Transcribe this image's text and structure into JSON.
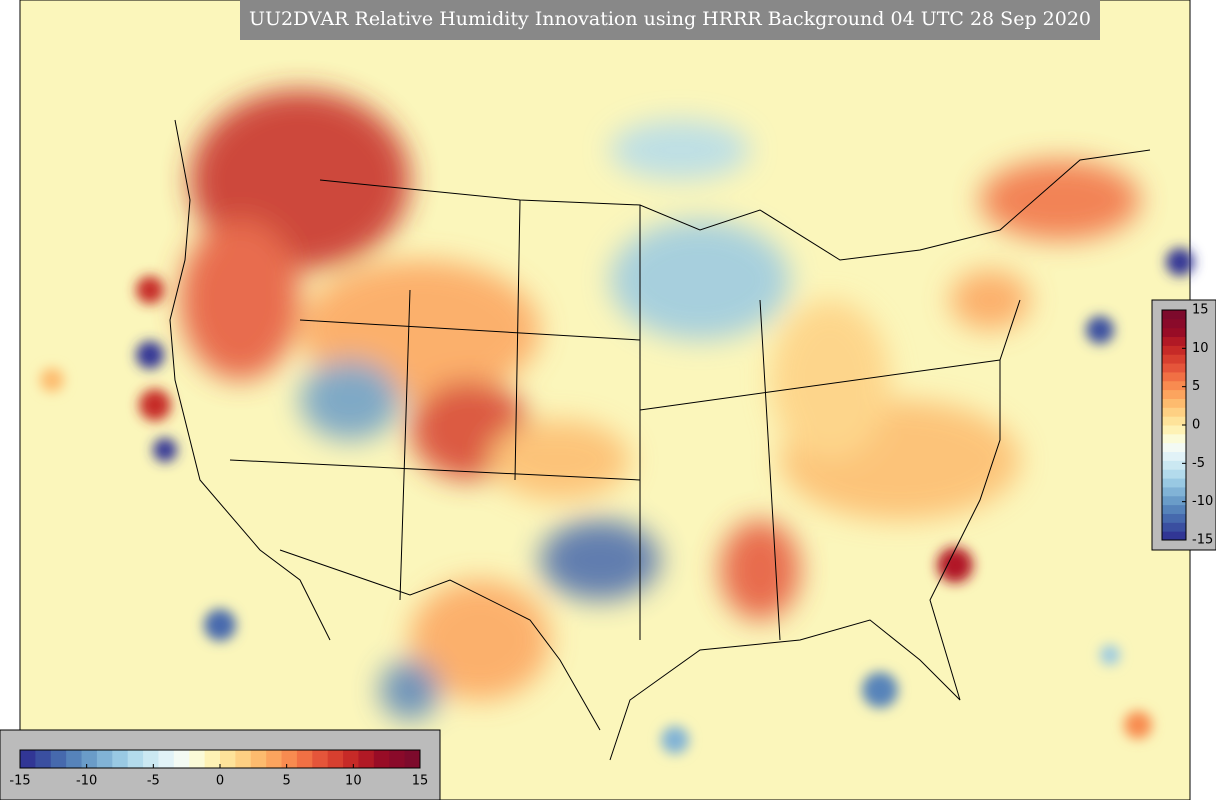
{
  "title": "UU2DVAR Relative Humidity Innovation using HRRR Background 04 UTC 28 Sep 2020",
  "colormap": [
    "#313695",
    "#3a4fa0",
    "#4669ad",
    "#5683ba",
    "#6a9cc8",
    "#81b3d6",
    "#99c9e3",
    "#b3dbec",
    "#cbe8f2",
    "#e1f2f7",
    "#f3faf4",
    "#fbfbd8",
    "#fef2b5",
    "#fee39a",
    "#fed083",
    "#fdbb6e",
    "#fca45e",
    "#f88b50",
    "#f17044",
    "#e5553a",
    "#d73f2f",
    "#c62a27",
    "#b11925",
    "#980c26",
    "#8a0a2a",
    "#7d0a2c"
  ],
  "colorbars": [
    {
      "orientation": "horizontal",
      "range": [
        -15,
        15
      ],
      "ticks": [
        -15,
        -10,
        -5,
        0,
        5,
        10,
        15
      ]
    },
    {
      "orientation": "vertical",
      "range": [
        -15,
        15
      ],
      "ticks": [
        -15,
        -10,
        -5,
        0,
        5,
        10,
        15
      ]
    }
  ]
}
